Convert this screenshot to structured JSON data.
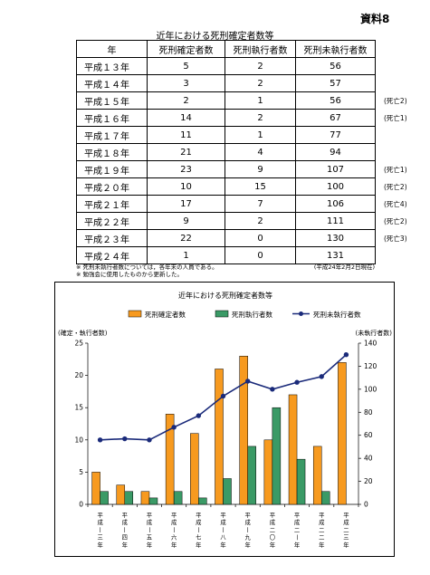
{
  "document_tag": "資料8",
  "table": {
    "title": "近年における死刑確定者数等",
    "headers": [
      "年",
      "死刑確定者数",
      "死刑執行者数",
      "死刑未執行者数"
    ],
    "rows": [
      {
        "year": "平成１３年",
        "confirmed": "5",
        "executed": "2",
        "unexecuted": "56",
        "note": ""
      },
      {
        "year": "平成１４年",
        "confirmed": "3",
        "executed": "2",
        "unexecuted": "57",
        "note": ""
      },
      {
        "year": "平成１５年",
        "confirmed": "2",
        "executed": "1",
        "unexecuted": "56",
        "note": "(死亡2)"
      },
      {
        "year": "平成１６年",
        "confirmed": "14",
        "executed": "2",
        "unexecuted": "67",
        "note": "(死亡1)"
      },
      {
        "year": "平成１７年",
        "confirmed": "11",
        "executed": "1",
        "unexecuted": "77",
        "note": ""
      },
      {
        "year": "平成１８年",
        "confirmed": "21",
        "executed": "4",
        "unexecuted": "94",
        "note": ""
      },
      {
        "year": "平成１９年",
        "confirmed": "23",
        "executed": "9",
        "unexecuted": "107",
        "note": "(死亡1)"
      },
      {
        "year": "平成２０年",
        "confirmed": "10",
        "executed": "15",
        "unexecuted": "100",
        "note": "(死亡2)"
      },
      {
        "year": "平成２１年",
        "confirmed": "17",
        "executed": "7",
        "unexecuted": "106",
        "note": "(死亡4)"
      },
      {
        "year": "平成２２年",
        "confirmed": "9",
        "executed": "2",
        "unexecuted": "111",
        "note": "(死亡2)"
      },
      {
        "year": "平成２３年",
        "confirmed": "22",
        "executed": "0",
        "unexecuted": "130",
        "note": "(死亡3)"
      },
      {
        "year": "平成２４年",
        "confirmed": "1",
        "executed": "0",
        "unexecuted": "131",
        "note": ""
      }
    ]
  },
  "notes": [
    "※ 死刑未執行者数については，各年末の人員である。",
    "※ 勉強会に使用したものから更新した。"
  ],
  "date_note": "(平成24年2月2日現在)",
  "chart_data": {
    "type": "bar",
    "title": "近年における死刑確定者数等",
    "categories": [
      "平成一三年",
      "平成一四年",
      "平成一五年",
      "平成一六年",
      "平成一七年",
      "平成一八年",
      "平成一九年",
      "平成二〇年",
      "平成二一年",
      "平成二二年",
      "平成二三年"
    ],
    "series": [
      {
        "name": "死刑確定者数",
        "type": "bar",
        "axis": "left",
        "color": "#F79A1F",
        "values": [
          5,
          3,
          2,
          14,
          11,
          21,
          23,
          10,
          17,
          9,
          22
        ]
      },
      {
        "name": "死刑執行者数",
        "type": "bar",
        "axis": "left",
        "color": "#3A9A66",
        "values": [
          2,
          2,
          1,
          2,
          1,
          4,
          9,
          15,
          7,
          2,
          0
        ]
      },
      {
        "name": "死刑未執行者数",
        "type": "line",
        "axis": "right",
        "color": "#1A2A7A",
        "values": [
          56,
          57,
          56,
          67,
          77,
          94,
          107,
          100,
          106,
          111,
          130
        ]
      }
    ],
    "ylabel_left": "(確定・執行者数)",
    "ylabel_right": "(未執行者数)",
    "ylim_left": [
      0,
      25
    ],
    "yticks_left": [
      "0",
      "5",
      "10",
      "15",
      "20",
      "25"
    ],
    "ylim_right": [
      0,
      140
    ],
    "yticks_right": [
      "0",
      "20",
      "40",
      "60",
      "80",
      "100",
      "120",
      "140"
    ],
    "legend_position": "top",
    "grid": false
  }
}
